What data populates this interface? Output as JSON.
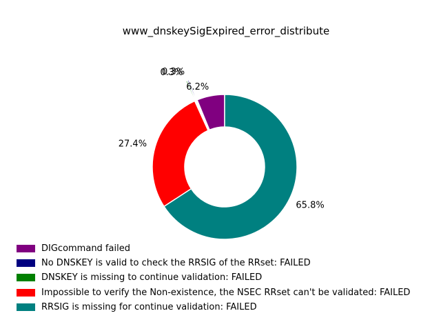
{
  "chart_data": {
    "type": "pie",
    "title": "www_dnskeySigExpired_error_distribute",
    "donut": true,
    "legend_position": "bottom-left",
    "slices": [
      {
        "label": "DIGcommand failed",
        "value": 6.2,
        "value_label": "6.2%",
        "color": "#800080",
        "exploded": false
      },
      {
        "label": "No DNSKEY is valid to check the RRSIG of the RRset: FAILED",
        "value": 0.3,
        "value_label": "0.3%",
        "color": "#000080",
        "exploded": true
      },
      {
        "label": "DNSKEY is missing to continue validation: FAILED",
        "value": 0.3,
        "value_label": "0.3%",
        "color": "#008000",
        "exploded": true
      },
      {
        "label": "Impossible to verify the Non-existence, the NSEC RRset can't be validated: FAILED",
        "value": 27.4,
        "value_label": "27.4%",
        "color": "#ff0000",
        "exploded": false
      },
      {
        "label": "RRSIG is missing for continue validation: FAILED",
        "value": 65.8,
        "value_label": "65.8%",
        "color": "#008080",
        "exploded": false
      }
    ]
  }
}
